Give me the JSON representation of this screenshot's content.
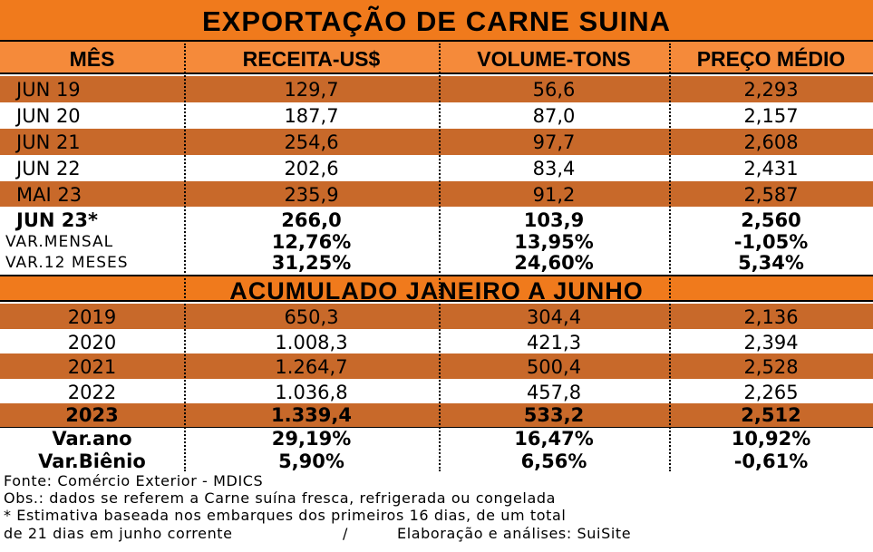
{
  "title": "EXPORTAÇÃO DE CARNE SUINA",
  "headers": {
    "mes": "MÊS",
    "receita": "RECEITA-US$",
    "volume": "VOLUME-TONS",
    "preco": "PREÇO MÉDIO"
  },
  "monthly": [
    {
      "label": "JUN 19",
      "receita": "129,7",
      "volume": "56,6",
      "preco": "2,293"
    },
    {
      "label": "JUN 20",
      "receita": "187,7",
      "volume": "87,0",
      "preco": "2,157"
    },
    {
      "label": "JUN 21",
      "receita": "254,6",
      "volume": "97,7",
      "preco": "2,608"
    },
    {
      "label": "JUN 22",
      "receita": "202,6",
      "volume": "83,4",
      "preco": "2,431"
    },
    {
      "label": "MAI 23",
      "receita": "235,9",
      "volume": "91,2",
      "preco": "2,587"
    },
    {
      "label": "JUN 23*",
      "receita": "266,0",
      "volume": "103,9",
      "preco": "2,560"
    }
  ],
  "monthly_vars": [
    {
      "label": "VAR.MENSAL",
      "receita": "12,76%",
      "volume": "13,95%",
      "preco": "-1,05%"
    },
    {
      "label": "VAR.12 MESES",
      "receita": "31,25%",
      "volume": "24,60%",
      "preco": "5,34%"
    }
  ],
  "section_title": "ACUMULADO JANEIRO A JUNHO",
  "accumulated": [
    {
      "label": "2019",
      "receita": "650,3",
      "volume": "304,4",
      "preco": "2,136"
    },
    {
      "label": "2020",
      "receita": "1.008,3",
      "volume": "421,3",
      "preco": "2,394"
    },
    {
      "label": "2021",
      "receita": "1.264,7",
      "volume": "500,4",
      "preco": "2,528"
    },
    {
      "label": "2022",
      "receita": "1.036,8",
      "volume": "457,8",
      "preco": "2,265"
    },
    {
      "label": "2023",
      "receita": "1.339,4",
      "volume": "533,2",
      "preco": "2,512"
    }
  ],
  "accumulated_vars": [
    {
      "label": "Var.ano",
      "receita": "29,19%",
      "volume": "16,47%",
      "preco": "10,92%"
    },
    {
      "label": "Var.Biênio",
      "receita": "5,90%",
      "volume": "6,56%",
      "preco": "-0,61%"
    }
  ],
  "footer": {
    "source": "Fonte: Comércio Exterior - MDICS",
    "obs": "Obs.: dados se referem a Carne suína fresca, refrigerada ou congelada",
    "note_line1": "* Estimativa baseada nos embarques dos primeiros 16 dias, de um total",
    "note_line2": "de 21 dias em junho corrente",
    "separator": "/",
    "credit": "Elaboração e análises: SuiSite"
  }
}
